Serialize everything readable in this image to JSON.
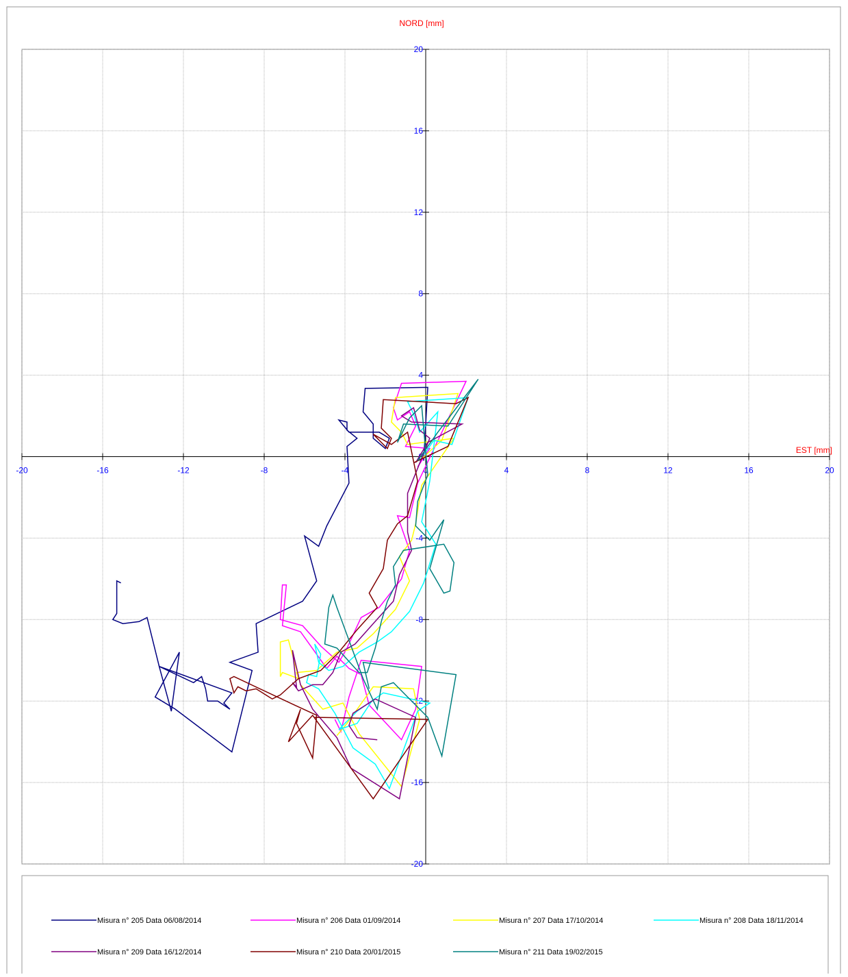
{
  "chart_data": {
    "type": "line",
    "y_label": "NORD  [mm]",
    "x_label": "EST [mm]",
    "xlim": [
      -20,
      20
    ],
    "ylim": [
      -20,
      20
    ],
    "xticks": [
      -20,
      -16,
      -12,
      -8,
      -4,
      0,
      4,
      8,
      12,
      16,
      20
    ],
    "yticks": [
      -20,
      -16,
      -12,
      -8,
      -4,
      0,
      4,
      8,
      12,
      16,
      20
    ],
    "grid": true,
    "legend": "bottom",
    "series": [
      {
        "name": "Misura n° 205 Data 06/08/2014",
        "color": "#000080",
        "x": [
          -0.1,
          0.1,
          -3,
          -3.1,
          -2.6,
          -2.6,
          -2,
          -1.8,
          -2.3,
          -3.8,
          -4.3,
          -3.9,
          -3.9,
          -3.4,
          -3.9,
          -3.8,
          -4.9,
          -5.3,
          -6,
          -5.4,
          -6.1,
          -8.4,
          -8.3,
          -9.7,
          -8.6,
          -9.6,
          -12.4,
          -13.4,
          -12.2,
          -12.6,
          -13.2,
          -11.5,
          -11.1,
          -10.9,
          -10.8,
          -10.3,
          -9.7,
          -10,
          -9.6,
          -13.2,
          -13.8,
          -14.2,
          -15,
          -15.5,
          -15.3,
          -15.3,
          -15.1
        ],
        "values": [
          -0.2,
          3.4,
          3.35,
          2.2,
          1.6,
          0.9,
          0.4,
          0.9,
          1.2,
          1.2,
          1.8,
          1.7,
          1.3,
          0.9,
          0.5,
          -1.3,
          -3.4,
          -4.4,
          -3.9,
          -6.1,
          -7.1,
          -8.2,
          -9.6,
          -10.1,
          -10.5,
          -14.5,
          -12.4,
          -11.8,
          -9.6,
          -12.5,
          -10.3,
          -11.1,
          -10.8,
          -11.4,
          -12,
          -12,
          -12.4,
          -12.1,
          -11.6,
          -10.3,
          -7.9,
          -8.1,
          -8.2,
          -8,
          -7.7,
          -6.1,
          -6.2
        ]
      },
      {
        "name": "Misura n° 206 Data 01/09/2014",
        "color": "#ff00ff",
        "x": [
          -0.4,
          0.2,
          -1,
          -0.5,
          -0.8,
          -1.4,
          -1.6,
          -1.2,
          2,
          -0.4,
          -0.8,
          -1.4,
          -0.8,
          -1.2,
          -2.3,
          -3.2,
          -3.9,
          -4.3,
          -5.2,
          -6.1,
          -7.2,
          -7.1,
          -6.9,
          -7.1,
          -6.2,
          -4.9,
          -4.4,
          -3.8,
          -3.2,
          -2.8,
          -1.2,
          -0.5,
          -0.2,
          -3.2,
          -3.8,
          -4.2,
          -4.5
        ],
        "values": [
          -0.5,
          0.4,
          0.5,
          1.5,
          2.2,
          1.8,
          2.4,
          3.6,
          3.7,
          -1.3,
          -3,
          -2.9,
          -4.6,
          -6,
          -7.4,
          -7.9,
          -9.4,
          -10.1,
          -9.3,
          -8.3,
          -8,
          -6.3,
          -6.3,
          -8.3,
          -8.6,
          -10.4,
          -9.8,
          -10.4,
          -10.7,
          -12.2,
          -13.9,
          -12.4,
          -10.3,
          -10,
          -11.8,
          -13.5,
          -12.9
        ]
      },
      {
        "name": "Misura n° 207 Data 17/10/2014",
        "color": "#ffff00",
        "x": [
          -0.2,
          0.8,
          1.6,
          -1.5,
          -1.7,
          -1.2,
          -0.9,
          1.4,
          -0.2,
          -0.5,
          -0.7,
          -1.3,
          -0.8,
          -1.5,
          -2.6,
          -3.4,
          -4.4,
          -5.4,
          -6.4,
          -6.3,
          -7.1,
          -7.2,
          -7.2,
          -6.8,
          -6.2,
          -5.1,
          -4.1,
          -3.3,
          -1.2,
          -0.3,
          -0.6,
          -2.6,
          -3.9,
          -4.4
        ],
        "values": [
          -0.1,
          0.8,
          3.1,
          2.9,
          1.7,
          1.2,
          0.6,
          0.9,
          -1.4,
          -3.3,
          -4.1,
          -4.9,
          -6.1,
          -7.5,
          -8.7,
          -9.4,
          -9.6,
          -10.5,
          -10.6,
          -10.9,
          -10.6,
          -10.8,
          -9.1,
          -9,
          -11.2,
          -12.4,
          -12.1,
          -13.6,
          -16.2,
          -12.9,
          -11.4,
          -11.3,
          -13.1,
          -13.7
        ]
      },
      {
        "name": "Misura n° 208 Data 18/11/2014",
        "color": "#00ffff",
        "x": [
          -0.3,
          0.4,
          1.3,
          2.1,
          -0.9,
          -0.6,
          -0.3,
          0.6,
          0.2,
          -0.2,
          0.5,
          -0.1,
          -0.8,
          -1.7,
          -2.4,
          -3.3,
          -4.1,
          -4.8,
          -5.3,
          -5.5,
          -5.2,
          -5.4,
          -5.8,
          -5.9,
          -5.3,
          -4.5,
          -3.6,
          -2.5,
          -1.8,
          -0.4,
          0.2,
          -2.1,
          -3.4,
          -4.3,
          -3.4,
          -2.6
        ],
        "values": [
          -0.2,
          0.8,
          0.6,
          2.9,
          2.7,
          2.1,
          1.2,
          2.2,
          -1.2,
          -3.2,
          -4.3,
          -6.2,
          -7.6,
          -8.6,
          -9.1,
          -9.6,
          -10.3,
          -10.5,
          -10.1,
          -9.2,
          -9.7,
          -10.8,
          -10.7,
          -11.1,
          -11.4,
          -12.6,
          -14.3,
          -15.1,
          -16.3,
          -12.5,
          -12.1,
          -11.6,
          -12.5,
          -13.4,
          -13.1,
          -11.9
        ]
      },
      {
        "name": "Misura n° 209 Data 16/12/2014",
        "color": "#800080",
        "x": [
          -0.5,
          0.1,
          1.8,
          -0.7,
          -1.2,
          -0.6,
          -0.3,
          0.2,
          -0.9,
          -0.9,
          -0.7,
          -1.3,
          -1.6,
          -2.6,
          -3.5,
          -4.2,
          -4.6,
          -5.1,
          -5.6,
          -6.3,
          -6.6,
          -6.4,
          -6.6,
          -6.2,
          -5.6,
          -4.4,
          -3.7,
          -1.3,
          -0.5,
          -2.5,
          -3.6,
          -3.8,
          -3.4,
          -2.4
        ],
        "values": [
          -0.3,
          0.7,
          1.6,
          1.7,
          2,
          2.4,
          1.3,
          0.9,
          -1.8,
          -3.7,
          -4.6,
          -5.8,
          -7.1,
          -8.2,
          -9.2,
          -9.6,
          -10.6,
          -11.2,
          -11.2,
          -11.5,
          -11.1,
          -11.3,
          -9.5,
          -11.2,
          -12.4,
          -13.8,
          -15.3,
          -16.8,
          -12.8,
          -11.9,
          -12.6,
          -13.2,
          -13.8,
          -13.9
        ]
      },
      {
        "name": "Misura n° 210 Data 20/01/2015",
        "color": "#800000",
        "x": [
          -0.6,
          1.1,
          2.1,
          1.5,
          -2.1,
          -2.2,
          -1.7,
          -1.9,
          -2.6,
          -1.7,
          -0.9,
          -0.4,
          -0.9,
          -1.4,
          -1.9,
          -2.1,
          -2.8,
          -2.4,
          -3.4,
          -4.3,
          -5.2,
          -6.3,
          -7.2,
          -7.6,
          -8.4,
          -8.9,
          -9.3,
          -9.5,
          -9.7,
          -9.5,
          -6.5,
          -5.4,
          -5.6,
          -6.4,
          -6.2,
          -6.8,
          -5.6,
          -2.6,
          0.1,
          -5.5
        ],
        "values": [
          -0.3,
          0.5,
          2.9,
          2.6,
          2.8,
          1.4,
          0.9,
          0.4,
          1.1,
          0.6,
          1.2,
          -1.2,
          -2.9,
          -3.3,
          -4.1,
          -5.5,
          -6.7,
          -7.4,
          -8.5,
          -9.6,
          -10.5,
          -10.9,
          -11.7,
          -11.9,
          -11.4,
          -11.5,
          -11.3,
          -11.6,
          -10.9,
          -10.8,
          -12.2,
          -12.7,
          -14.8,
          -13.1,
          -12.4,
          -14,
          -12.7,
          -16.8,
          -12.9,
          -12.8
        ]
      },
      {
        "name": "Misura n° 211 Data 19/02/2015",
        "color": "#008080",
        "x": [
          -0.4,
          0.6,
          2.6,
          1.1,
          -1.1,
          -1.4,
          -0.8,
          -0.2,
          0.1,
          -0.4,
          -0.5,
          0.2,
          0.9,
          0.2,
          0.9,
          1.2,
          1.4,
          0.9,
          -1.1,
          -1.6,
          -1.5,
          -1.9,
          -2.2,
          -2.5,
          -2.9,
          -3.3,
          -4.4,
          -5,
          -4.8,
          -4.6,
          -4.4,
          -3.1,
          -2.4,
          -2.2,
          -1.6,
          0.1,
          0.8,
          1.5,
          -3.1,
          -2.8
        ],
        "values": [
          -0.2,
          1.2,
          3.8,
          1.5,
          1.6,
          0.7,
          1.9,
          2.5,
          -0.9,
          -2.2,
          -3.4,
          -4.1,
          -3.1,
          -5.5,
          -6.7,
          -6.6,
          -5.2,
          -4.3,
          -4.6,
          -5.4,
          -6.3,
          -7.1,
          -8.1,
          -9.4,
          -10.6,
          -10.6,
          -9.4,
          -9.2,
          -7.4,
          -6.8,
          -7.4,
          -10.9,
          -12.4,
          -11.3,
          -11.1,
          -12.8,
          -14.7,
          -10.7,
          -10.1,
          -11.4
        ]
      }
    ]
  }
}
